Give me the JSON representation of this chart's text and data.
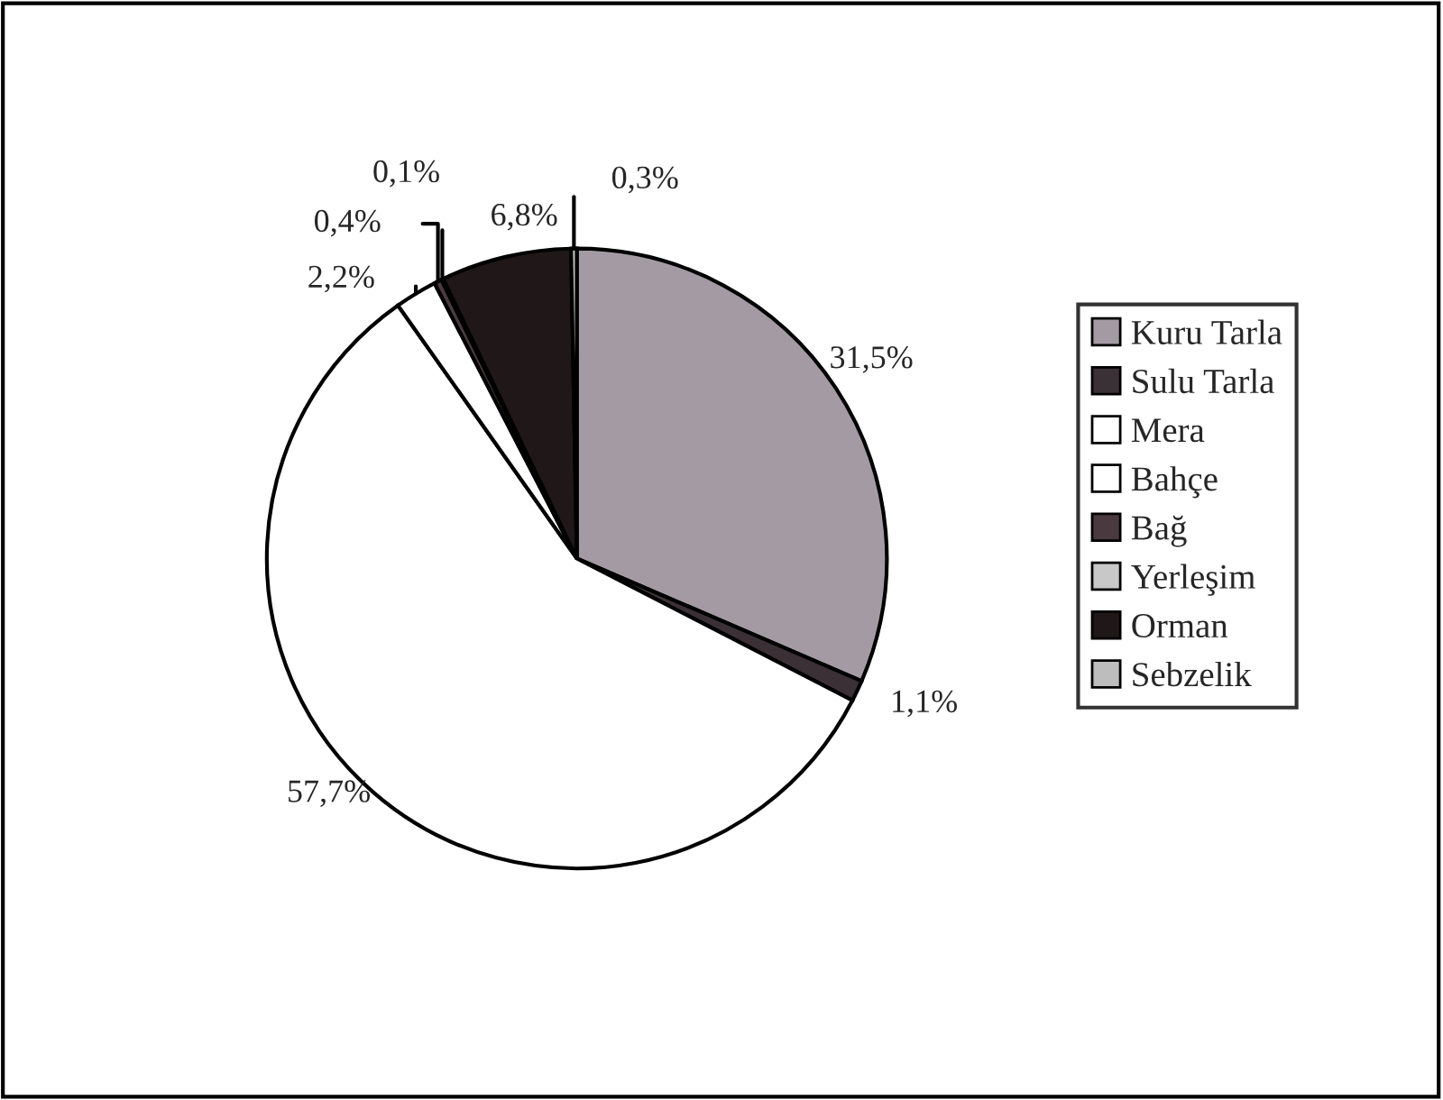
{
  "chart_data": {
    "type": "pie",
    "categories": [
      "Kuru Tarla",
      "Sulu Tarla",
      "Mera",
      "Bahçe",
      "Bağ",
      "Yerleşim",
      "Orman",
      "Sebzelik"
    ],
    "values": [
      31.5,
      1.1,
      57.7,
      2.2,
      0.4,
      0.1,
      6.8,
      0.3
    ],
    "value_labels": [
      "31,5%",
      "1,1%",
      "57,7%",
      "2,2%",
      "0,4%",
      "0,1%",
      "6,8%",
      "0,3%"
    ],
    "colors": [
      "#a39aa3",
      "#3a3035",
      "#ffffff",
      "#ffffff",
      "#4a3a40",
      "#c8c8c8",
      "#201818",
      "#bdbdbd"
    ],
    "legend": "right"
  }
}
